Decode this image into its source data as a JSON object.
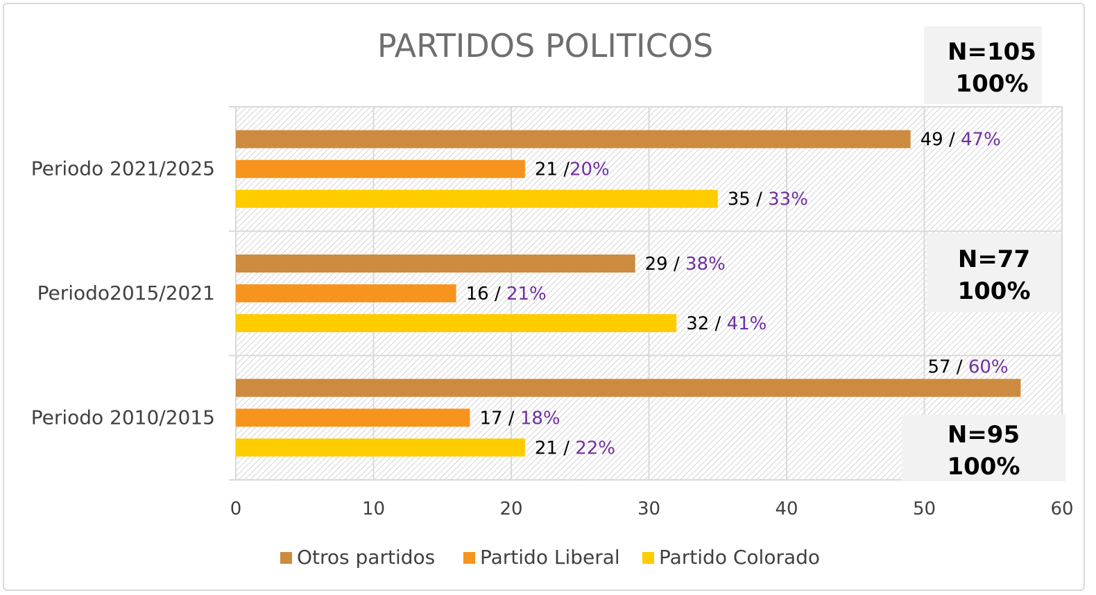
{
  "chart_data": {
    "type": "bar",
    "orientation": "horizontal",
    "title": "PARTIDOS POLITICOS",
    "categories": [
      "Periodo 2021/2025",
      "Periodo2015/2021",
      "Periodo 2010/2015"
    ],
    "series": [
      {
        "name": "Otros partidos",
        "color": "#cd8b40",
        "values": [
          49,
          29,
          57
        ],
        "labels": [
          "49 / ",
          "29 / ",
          "57 / "
        ],
        "pct": [
          "47%",
          "38%",
          "60%"
        ]
      },
      {
        "name": "Partido Liberal",
        "color": "#f7941d",
        "values": [
          21,
          16,
          17
        ],
        "labels": [
          "21 /",
          "16 / ",
          "17 / "
        ],
        "pct": [
          "20%",
          "21%",
          "18%"
        ]
      },
      {
        "name": "Partido Colorado",
        "color": "#ffcc00",
        "values": [
          35,
          32,
          21
        ],
        "labels": [
          "35 / ",
          "32 / ",
          "21 / "
        ],
        "pct": [
          "33%",
          "41%",
          "22%"
        ]
      }
    ],
    "xlim": [
      0,
      60
    ],
    "xticks": [
      "0",
      "10",
      "20",
      "30",
      "40",
      "50",
      "60"
    ],
    "xlabel": "",
    "ylabel": "",
    "grid": true,
    "legend_position": "bottom",
    "pct_color": "#7030a0",
    "annotations": [
      {
        "category": "Periodo 2021/2025",
        "n": "N=105",
        "pct": "100%"
      },
      {
        "category": "Periodo2015/2021",
        "n": "N=77",
        "pct": "100%"
      },
      {
        "category": "Periodo 2010/2015",
        "n": "N=95",
        "pct": "100%"
      }
    ]
  }
}
